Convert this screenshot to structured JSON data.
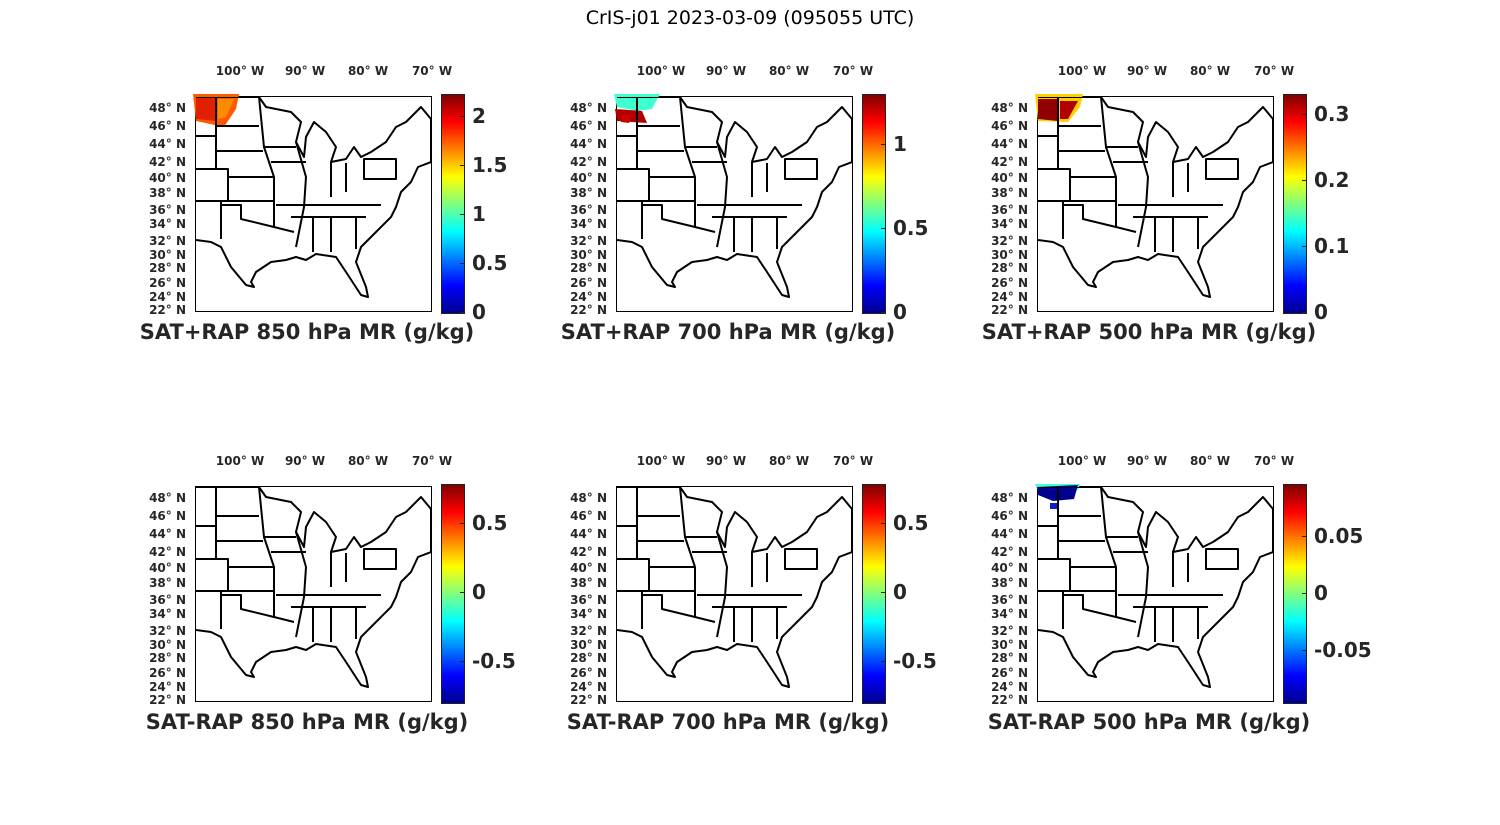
{
  "figure_title": "CrIS-j01 2023-03-09 (095055 UTC)",
  "colormap": "jet",
  "lon_labels": [
    "100° W",
    "90° W",
    "80° W",
    "70° W"
  ],
  "lat_labels": [
    "48° N",
    "46° N",
    "44° N",
    "42° N",
    "40° N",
    "38° N",
    "36° N",
    "34° N",
    "32° N",
    "30° N",
    "28° N",
    "26° N",
    "24° N",
    "22° N"
  ],
  "chart_data": [
    {
      "type": "heatmap",
      "title": "SAT+RAP 850 hPa MR (g/kg)",
      "clim": [
        0,
        2.22
      ],
      "colorbar_ticks": [
        "0",
        "0.5",
        "1",
        "1.5",
        "2"
      ],
      "colorbar_tick_values": [
        0,
        0.5,
        1,
        1.5,
        2
      ],
      "swath_colors": [
        "#ff5a00",
        "#e02000",
        "#ff8c00"
      ]
    },
    {
      "type": "heatmap",
      "title": "SAT+RAP 700 hPa MR (g/kg)",
      "clim": [
        0,
        1.3
      ],
      "colorbar_ticks": [
        "0",
        "0.5",
        "1"
      ],
      "colorbar_tick_values": [
        0,
        0.5,
        1
      ],
      "swath_colors": [
        "#40ffd0",
        "#b00000",
        "#cc0000"
      ]
    },
    {
      "type": "heatmap",
      "title": "SAT+RAP 500 hPa MR (g/kg)",
      "clim": [
        0,
        0.33
      ],
      "colorbar_ticks": [
        "0",
        "0.1",
        "0.2",
        "0.3"
      ],
      "colorbar_tick_values": [
        0,
        0.1,
        0.2,
        0.3
      ],
      "swath_colors": [
        "#ffd000",
        "#900000",
        "#b00000"
      ]
    },
    {
      "type": "heatmap",
      "title": "SAT-RAP 850 hPa MR (g/kg)",
      "clim": [
        -0.8,
        0.78
      ],
      "colorbar_ticks": [
        "-0.5",
        "0",
        "0.5"
      ],
      "colorbar_tick_values": [
        -0.5,
        0,
        0.5
      ],
      "swath_colors": []
    },
    {
      "type": "heatmap",
      "title": "SAT-RAP 700 hPa MR (g/kg)",
      "clim": [
        -0.8,
        0.78
      ],
      "colorbar_ticks": [
        "-0.5",
        "0",
        "0.5"
      ],
      "colorbar_tick_values": [
        -0.5,
        0,
        0.5
      ],
      "swath_colors": []
    },
    {
      "type": "heatmap",
      "title": "SAT-RAP 500 hPa MR (g/kg)",
      "clim": [
        -0.095,
        0.095
      ],
      "colorbar_ticks": [
        "-0.05",
        "0",
        "0.05"
      ],
      "colorbar_tick_values": [
        -0.05,
        0,
        0.05
      ],
      "swath_colors": [
        "#40ffd0",
        "#00008f",
        "#1020c0"
      ]
    }
  ]
}
